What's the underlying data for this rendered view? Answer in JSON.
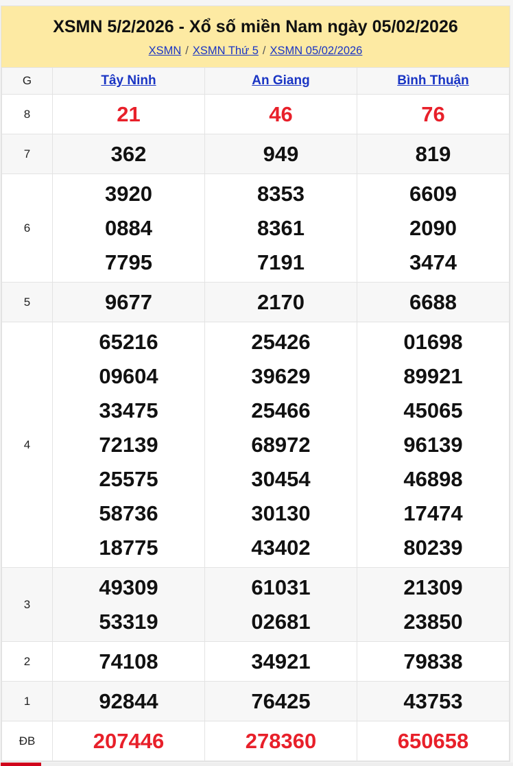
{
  "header": {
    "title": "XSMN 5/2/2026 - Xổ số miền Nam ngày 05/02/2026",
    "breadcrumbs": [
      "XSMN",
      "XSMN Thứ 5",
      "XSMN 05/02/2026"
    ],
    "separator": "/"
  },
  "table": {
    "g_label": "G",
    "provinces": [
      "Tây Ninh",
      "An Giang",
      "Bình Thuận"
    ],
    "rows": [
      {
        "prize": "8",
        "red": true,
        "values": [
          [
            "21"
          ],
          [
            "46"
          ],
          [
            "76"
          ]
        ]
      },
      {
        "prize": "7",
        "values": [
          [
            "362"
          ],
          [
            "949"
          ],
          [
            "819"
          ]
        ]
      },
      {
        "prize": "6",
        "values": [
          [
            "3920",
            "0884",
            "7795"
          ],
          [
            "8353",
            "8361",
            "7191"
          ],
          [
            "6609",
            "2090",
            "3474"
          ]
        ]
      },
      {
        "prize": "5",
        "values": [
          [
            "9677"
          ],
          [
            "2170"
          ],
          [
            "6688"
          ]
        ]
      },
      {
        "prize": "4",
        "values": [
          [
            "65216",
            "09604",
            "33475",
            "72139",
            "25575",
            "58736",
            "18775"
          ],
          [
            "25426",
            "39629",
            "25466",
            "68972",
            "30454",
            "30130",
            "43402"
          ],
          [
            "01698",
            "89921",
            "45065",
            "96139",
            "46898",
            "17474",
            "80239"
          ]
        ]
      },
      {
        "prize": "3",
        "values": [
          [
            "49309",
            "53319"
          ],
          [
            "61031",
            "02681"
          ],
          [
            "21309",
            "23850"
          ]
        ]
      },
      {
        "prize": "2",
        "values": [
          [
            "74108"
          ],
          [
            "34921"
          ],
          [
            "79838"
          ]
        ]
      },
      {
        "prize": "1",
        "values": [
          [
            "92844"
          ],
          [
            "76425"
          ],
          [
            "43753"
          ]
        ]
      },
      {
        "prize": "ĐB",
        "red": true,
        "values": [
          [
            "207446"
          ],
          [
            "278360"
          ],
          [
            "650658"
          ]
        ]
      }
    ]
  },
  "colors": {
    "header_bg": "#fdeaa3",
    "link": "#1a35c4",
    "red": "#e8202a",
    "active_tab": "#d0021b"
  }
}
